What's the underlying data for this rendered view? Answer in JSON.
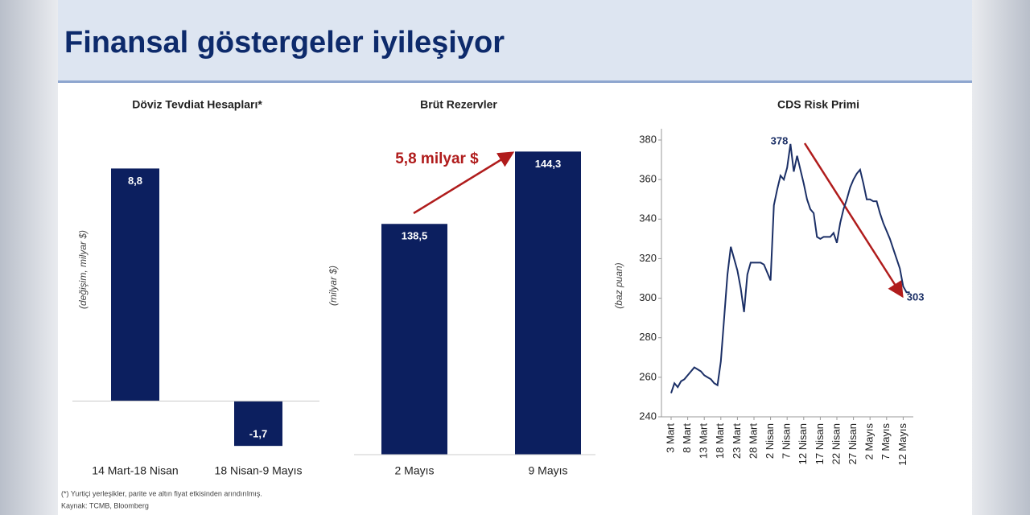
{
  "title": "Finansal göstergeler iyileşiyor",
  "chart_data": [
    {
      "type": "bar",
      "title": "Döviz Tevdiat Hesapları*",
      "y_label": "(değişim, milyar $)",
      "categories": [
        "14 Mart-18 Nisan",
        "18 Nisan-9 Mayıs"
      ],
      "values": [
        8.8,
        -1.7
      ],
      "value_labels": [
        "8,8",
        "-1,7"
      ],
      "color": "#0c1f5f",
      "ylim": [
        -2,
        10
      ]
    },
    {
      "type": "bar",
      "title": "Brüt Rezervler",
      "y_label": "(milyar $)",
      "categories": [
        "2 Mayıs",
        "9 Mayıs"
      ],
      "values": [
        138.5,
        144.3
      ],
      "value_labels": [
        "138,5",
        "144,3"
      ],
      "color": "#0c1f5f",
      "ylim": [
        120,
        150
      ],
      "annotation": "5,8 milyar $"
    },
    {
      "type": "line",
      "title": "CDS Risk Primi",
      "y_label": "(baz puan)",
      "categories": [
        "3 Mart",
        null,
        null,
        null,
        null,
        "8 Mart",
        null,
        null,
        null,
        null,
        "13 Mart",
        null,
        null,
        null,
        null,
        "18 Mart",
        null,
        null,
        null,
        null,
        "23 Mart",
        null,
        null,
        null,
        null,
        "28 Mart",
        null,
        null,
        null,
        null,
        "2 Nisan",
        null,
        null,
        null,
        null,
        "7 Nisan",
        null,
        null,
        null,
        null,
        "12 Nisan",
        null,
        null,
        null,
        null,
        "17 Nisan",
        null,
        null,
        null,
        null,
        "22 Nisan",
        null,
        null,
        null,
        null,
        "27 Nisan",
        null,
        null,
        null,
        null,
        "2 Mayıs",
        null,
        null,
        null,
        null,
        "7 Mayıs",
        null,
        null,
        null,
        null,
        "12 Mayıs",
        null,
        null
      ],
      "values": [
        252,
        257,
        255,
        258,
        259,
        261,
        263,
        265,
        264,
        263,
        261,
        260,
        259,
        257,
        256,
        268,
        290,
        312,
        326,
        320,
        314,
        305,
        293,
        312,
        318,
        318,
        318,
        318,
        317,
        313,
        309,
        347,
        355,
        362,
        360,
        366,
        378,
        364,
        372,
        365,
        358,
        350,
        345,
        343,
        331,
        330,
        331,
        331,
        331,
        333,
        328,
        338,
        345,
        350,
        356,
        360,
        363,
        365,
        358,
        350,
        350,
        349,
        349,
        343,
        338,
        334,
        330,
        325,
        320,
        315,
        306,
        303,
        303
      ],
      "color": "#1b2f66",
      "ylim": [
        240,
        380
      ],
      "yticks": [
        240,
        260,
        280,
        300,
        320,
        340,
        360,
        380
      ]
    }
  ],
  "footnotes": [
    "(*) Yurtiçi yerleşikler, parite ve altın fiyat etkisinden arındırılmış.",
    "Kaynak: TCMB, Bloomberg"
  ]
}
